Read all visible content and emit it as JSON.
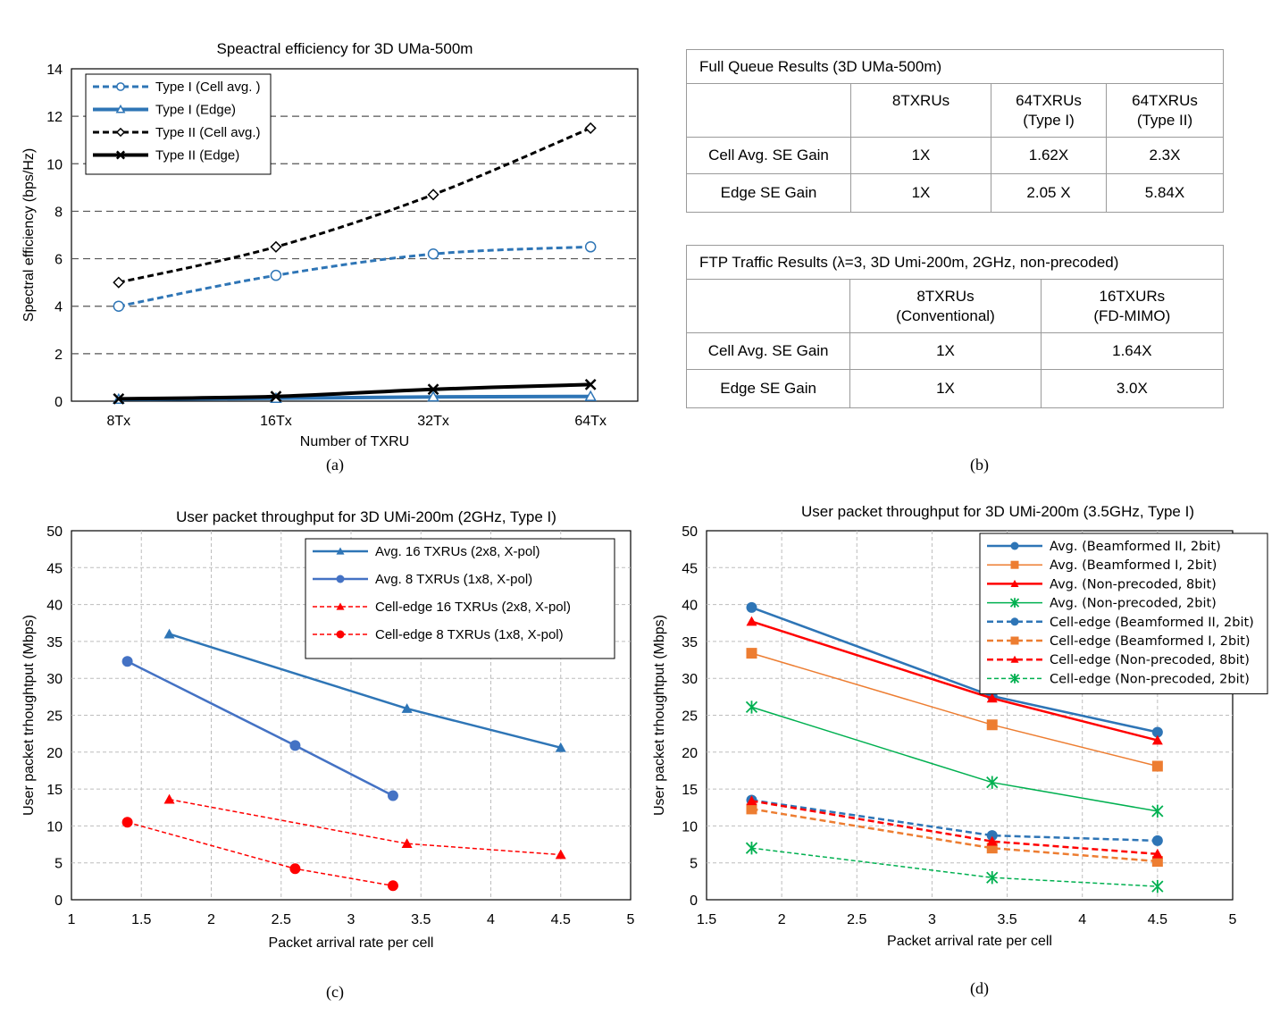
{
  "chart_data": [
    {
      "id": "a",
      "type": "line",
      "title": "Speactral efficiency for 3D UMa-500m",
      "xlabel": "Number of TXRU",
      "ylabel": "Spectral efficiency (bps/Hz)",
      "categories": [
        "8Tx",
        "16Tx",
        "32Tx",
        "64Tx"
      ],
      "ylim": [
        0,
        14
      ],
      "yticks": [
        "0",
        "2",
        "4",
        "6",
        "8",
        "10",
        "12",
        "14"
      ],
      "grid": "horizontal-dashed",
      "legend_position": "top-left",
      "series": [
        {
          "name": "Type I (Cell avg. )",
          "values": [
            4.0,
            5.3,
            6.2,
            6.5
          ],
          "color": "#2e75b6",
          "dash": true,
          "marker": "circle-open",
          "width": 3
        },
        {
          "name": "Type I (Edge)",
          "values": [
            0.08,
            0.12,
            0.18,
            0.2
          ],
          "color": "#2e75b6",
          "dash": false,
          "marker": "triangle-open",
          "width": 4
        },
        {
          "name": "Type II (Cell avg.)",
          "values": [
            5.0,
            6.5,
            8.7,
            11.5
          ],
          "color": "#000000",
          "dash": true,
          "marker": "diamond-open",
          "width": 3
        },
        {
          "name": "Type II (Edge)",
          "values": [
            0.1,
            0.2,
            0.5,
            0.7
          ],
          "color": "#000000",
          "dash": false,
          "marker": "x",
          "width": 4
        }
      ]
    },
    {
      "id": "c",
      "type": "line",
      "title": "User packet throughput for 3D UMi-200m (2GHz, Type I)",
      "xlabel": "Packet arrival rate per cell",
      "ylabel": "User packet trhoughtput (Mbps)",
      "xlim": [
        1,
        5
      ],
      "xticks": [
        "1",
        "1.5",
        "2",
        "2.5",
        "3",
        "3.5",
        "4",
        "4.5",
        "5"
      ],
      "ylim": [
        0,
        50
      ],
      "yticks": [
        "0",
        "5",
        "10",
        "15",
        "20",
        "25",
        "30",
        "35",
        "40",
        "45",
        "50"
      ],
      "grid": "both-dashed",
      "legend_position": "top-right",
      "series": [
        {
          "name": "Avg. 16 TXRUs (2x8, X-pol)",
          "x": [
            1.7,
            3.4,
            4.5
          ],
          "y": [
            36.0,
            25.9,
            20.6
          ],
          "color": "#2e75b6",
          "dash": false,
          "marker": "triangle",
          "width": 2.5
        },
        {
          "name": "Avg. 8 TXRUs (1x8, X-pol)",
          "x": [
            1.4,
            2.6,
            3.3
          ],
          "y": [
            32.3,
            20.9,
            14.1
          ],
          "color": "#4472c4",
          "dash": false,
          "marker": "circle",
          "width": 2.5
        },
        {
          "name": "Cell-edge 16 TXRUs (2x8, X-pol)",
          "x": [
            1.7,
            3.4,
            4.5
          ],
          "y": [
            13.6,
            7.6,
            6.1
          ],
          "color": "#ff0000",
          "dash": true,
          "marker": "triangle",
          "width": 1.5
        },
        {
          "name": "Cell-edge 8 TXRUs (1x8, X-pol)",
          "x": [
            1.4,
            2.6,
            3.3
          ],
          "y": [
            10.5,
            4.2,
            1.9
          ],
          "color": "#ff0000",
          "dash": true,
          "marker": "circle",
          "width": 1.5
        }
      ]
    },
    {
      "id": "d",
      "type": "line",
      "title": "User packet throughput for 3D UMi-200m (3.5GHz, Type I)",
      "xlabel": "Packet arrival rate per cell",
      "ylabel": "User packet trhoughtput (Mbps)",
      "xlim": [
        1.5,
        5
      ],
      "xticks": [
        "1.5",
        "2",
        "2.5",
        "3",
        "3.5",
        "4",
        "4.5",
        "5"
      ],
      "ylim": [
        0,
        50
      ],
      "yticks": [
        "0",
        "5",
        "10",
        "15",
        "20",
        "25",
        "30",
        "35",
        "40",
        "45",
        "50"
      ],
      "grid": "both-dashed",
      "legend_position": "top-right",
      "series": [
        {
          "name": "Avg. (Beamformed II, 2bit)",
          "x": [
            1.8,
            3.4,
            4.5
          ],
          "y": [
            39.6,
            27.6,
            22.7
          ],
          "color": "#2e75b6",
          "dash": false,
          "marker": "circle",
          "width": 2.5
        },
        {
          "name": "Avg. (Beamformed I, 2bit)",
          "x": [
            1.8,
            3.4,
            4.5
          ],
          "y": [
            33.4,
            23.7,
            18.1
          ],
          "color": "#ed7d31",
          "dash": false,
          "marker": "square",
          "width": 1.5
        },
        {
          "name": "Avg. (Non-precoded, 8bit)",
          "x": [
            1.8,
            3.4,
            4.5
          ],
          "y": [
            37.7,
            27.3,
            21.6
          ],
          "color": "#ff0000",
          "dash": false,
          "marker": "triangle",
          "width": 2.5
        },
        {
          "name": "Avg. (Non-precoded, 2bit)",
          "x": [
            1.8,
            3.4,
            4.5
          ],
          "y": [
            26.1,
            15.9,
            12.0
          ],
          "color": "#00b050",
          "dash": false,
          "marker": "asterisk",
          "width": 1.5
        },
        {
          "name": "Cell-edge (Beamformed II, 2bit)",
          "x": [
            1.8,
            3.4,
            4.5
          ],
          "y": [
            13.5,
            8.7,
            8.0
          ],
          "color": "#2e75b6",
          "dash": true,
          "marker": "circle",
          "width": 2.5
        },
        {
          "name": "Cell-edge (Beamformed I, 2bit)",
          "x": [
            1.8,
            3.4,
            4.5
          ],
          "y": [
            12.3,
            7.0,
            5.2
          ],
          "color": "#ed7d31",
          "dash": true,
          "marker": "square",
          "width": 2.5
        },
        {
          "name": "Cell-edge (Non-precoded, 8bit)",
          "x": [
            1.8,
            3.4,
            4.5
          ],
          "y": [
            13.4,
            7.9,
            6.2
          ],
          "color": "#ff0000",
          "dash": true,
          "marker": "triangle",
          "width": 2.5
        },
        {
          "name": "Cell-edge (Non-precoded, 2bit)",
          "x": [
            1.8,
            3.4,
            4.5
          ],
          "y": [
            7.0,
            3.0,
            1.8
          ],
          "color": "#00b050",
          "dash": true,
          "marker": "asterisk",
          "width": 1.5
        }
      ]
    }
  ],
  "tables": {
    "full_queue": {
      "title": "Full Queue Results (3D UMa-500m)",
      "headers": [
        "",
        "8TXRUs",
        "64TXRUs (Type I)",
        "64TXRUs (Type II)"
      ],
      "rows": [
        [
          "Cell Avg. SE Gain",
          "1X",
          "1.62X",
          "2.3X"
        ],
        [
          "Edge SE Gain",
          "1X",
          "2.05 X",
          "5.84X"
        ]
      ]
    },
    "ftp": {
      "title": "FTP Traffic Results (λ=3, 3D Umi-200m, 2GHz, non-precoded)",
      "headers": [
        "",
        "8TXRUs (Conventional)",
        "16TXURs (FD-MIMO)"
      ],
      "rows": [
        [
          "Cell Avg. SE Gain",
          "1X",
          "1.64X"
        ],
        [
          "Edge SE Gain",
          "1X",
          "3.0X"
        ]
      ]
    }
  },
  "captions": {
    "a": "(a)",
    "b": "(b)",
    "c": "(c)",
    "d": "(d)"
  }
}
